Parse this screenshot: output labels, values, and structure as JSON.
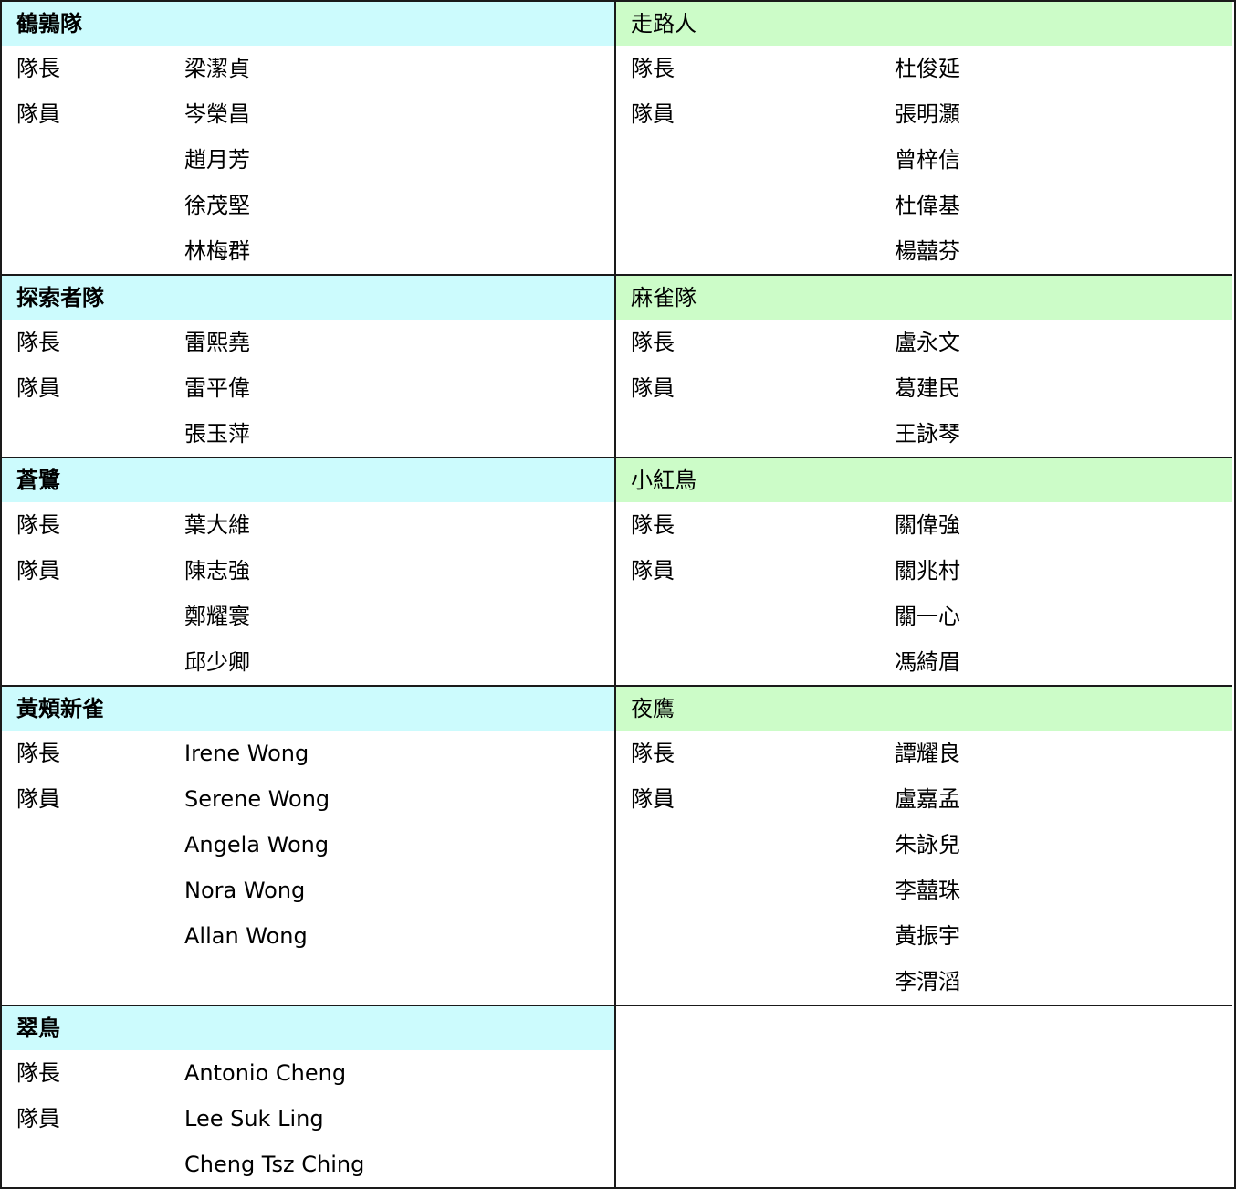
{
  "colors": {
    "left_header_bg": "#ccfbfd",
    "right_header_bg": "#ccfcc8",
    "border": "#1a1a1a"
  },
  "roles": {
    "leader": "隊長",
    "member": "隊員"
  },
  "sections": [
    {
      "left": {
        "team": "鶴鶉隊",
        "leader": "梁潔貞",
        "members": [
          "岑榮昌",
          "趙月芳",
          "徐茂堅",
          "林梅群"
        ]
      },
      "right": {
        "team": "走路人",
        "leader": "杜俊延",
        "members": [
          "張明灝",
          "曾梓信",
          "杜偉基",
          "楊囍芬"
        ]
      }
    },
    {
      "left": {
        "team": "探索者隊",
        "leader": "雷熙堯",
        "members": [
          "雷平偉",
          "張玉萍"
        ]
      },
      "right": {
        "team": "麻雀隊",
        "leader": "盧永文",
        "members": [
          "葛建民",
          "王詠琴"
        ]
      }
    },
    {
      "left": {
        "team": "蒼鷺",
        "leader": "葉大維",
        "members": [
          "陳志強",
          "鄭耀寰",
          "邱少卿"
        ]
      },
      "right": {
        "team": "小紅鳥",
        "leader": "關偉強",
        "members": [
          "關兆村",
          "關一心",
          "馮綺眉"
        ]
      }
    },
    {
      "left": {
        "team": "黃頰新雀",
        "leader": "Irene Wong",
        "members": [
          "Serene Wong",
          "Angela Wong",
          "Nora Wong",
          "Allan Wong"
        ]
      },
      "right": {
        "team": "夜鷹",
        "leader": "譚耀良",
        "members": [
          "盧嘉孟",
          "朱詠兒",
          "李囍珠",
          "黃振宇",
          "李渭滔"
        ]
      }
    },
    {
      "left": {
        "team": "翠鳥",
        "leader": "Antonio Cheng",
        "members": [
          "Lee Suk Ling",
          "Cheng Tsz Ching"
        ]
      },
      "right": null
    }
  ]
}
